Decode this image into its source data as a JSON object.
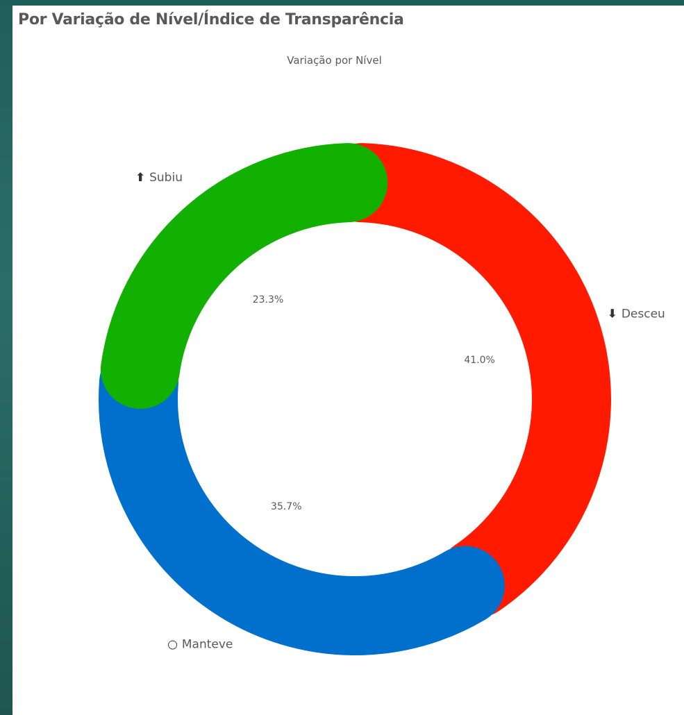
{
  "header": {
    "title": "Por Variação de Nível/Índice de Transparência"
  },
  "chart_data": {
    "type": "pie",
    "title": "Variação por Nível",
    "categories": [
      "Desceu",
      "Manteve",
      "Subiu"
    ],
    "values": [
      41.0,
      35.7,
      23.3
    ],
    "data_labels": [
      "41.0%",
      "35.7%",
      "23.3%"
    ],
    "legend_labels": [
      "Desceu",
      "Manteve",
      "Subiu"
    ],
    "legend_icons": [
      "arrow-down-icon",
      "circle-icon",
      "arrow-up-icon"
    ],
    "colors": [
      "#ff1a00",
      "#0070cc",
      "#12b000"
    ],
    "donut": true
  }
}
